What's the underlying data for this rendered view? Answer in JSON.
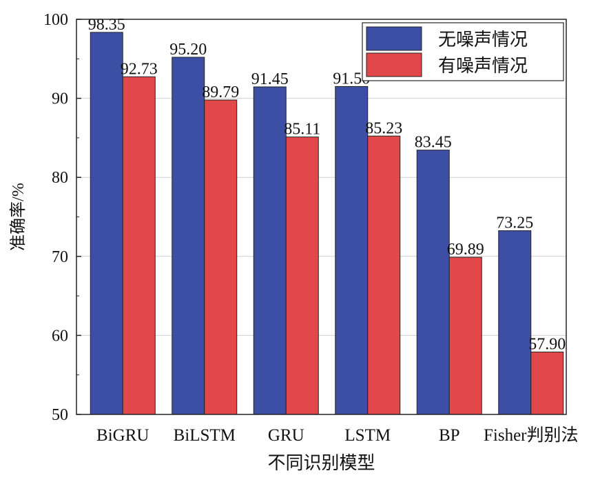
{
  "chart_data": {
    "type": "bar",
    "title": "",
    "xlabel": "不同识别模型",
    "ylabel": "准确率/%",
    "ylim": [
      50,
      100
    ],
    "yticks": [
      50,
      60,
      70,
      80,
      90,
      100
    ],
    "grid": true,
    "legend_position": "top-right",
    "categories": [
      "BiGRU",
      "BiLSTM",
      "GRU",
      "LSTM",
      "BP",
      "Fisher判别法"
    ],
    "series": [
      {
        "name": "无噪声情况",
        "color": "#3c4fa5",
        "values": [
          98.35,
          95.2,
          91.45,
          91.5,
          83.45,
          73.25
        ],
        "labels": [
          "98.35",
          "95.20",
          "91.45",
          "91.50",
          "83.45",
          "73.25"
        ]
      },
      {
        "name": "有噪声情况",
        "color": "#e2474a",
        "values": [
          92.73,
          89.79,
          85.11,
          85.23,
          69.89,
          57.9
        ],
        "labels": [
          "92.73",
          "89.79",
          "85.11",
          "85.23",
          "69.89",
          "57.90"
        ]
      }
    ]
  }
}
